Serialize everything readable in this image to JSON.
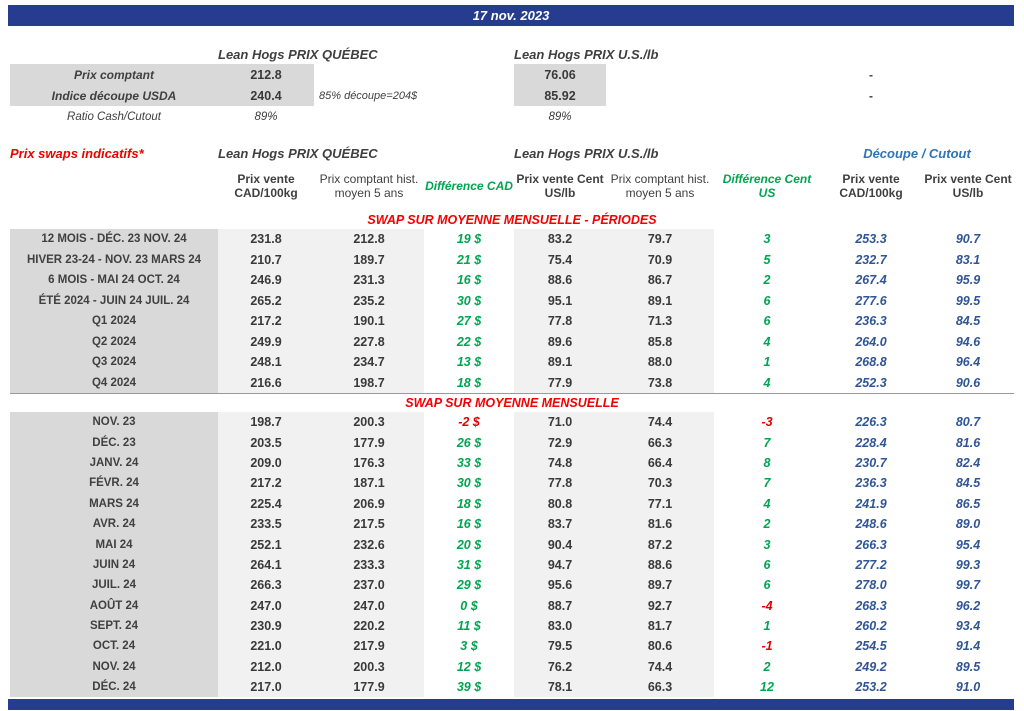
{
  "page": {
    "date": "17 nov. 2023"
  },
  "colors": {
    "navy": "#263D8F",
    "red": "#EE0000",
    "green": "#00A550",
    "blue_values": "#2F5597",
    "blue_header": "#2E75B6",
    "gray_label": "#D9D9D9",
    "gray_cell": "#F1F1F1"
  },
  "top_section": {
    "quebec_title": "Lean Hogs PRIX QUÉBEC",
    "us_title": "Lean Hogs PRIX U.S./lb",
    "rows": [
      {
        "label": "Prix comptant",
        "cad": "212.8",
        "note": "",
        "us": "76.06",
        "right": "-"
      },
      {
        "label": "Indice découpe USDA",
        "cad": "240.4",
        "note": "85% découpe=204$",
        "us": "85.92",
        "right": "-"
      },
      {
        "label": "Ratio Cash/Cutout",
        "cad": "89%",
        "note": "",
        "us": "89%",
        "right": ""
      }
    ]
  },
  "swaps": {
    "title": "Prix swaps indicatifs*",
    "group_quebec": "Lean Hogs PRIX QUÉBEC",
    "group_us": "Lean Hogs PRIX U.S./lb",
    "group_cutout": "Découpe / Cutout",
    "col_headers": [
      "Prix vente CAD/100kg",
      "Prix comptant hist. moyen 5 ans",
      "Différence CAD",
      "Prix vente Cent US/lb",
      "Prix comptant hist. moyen 5 ans",
      "Différence Cent US",
      "Prix vente CAD/100kg",
      "Prix vente Cent US/lb"
    ],
    "sections": [
      {
        "title": "SWAP SUR MOYENNE MENSUELLE - PÉRIODES",
        "rows": [
          {
            "label": "12 MOIS - DÉC. 23 NOV. 24",
            "cells": [
              "231.8",
              "212.8",
              "19 $",
              "83.2",
              "79.7",
              "3",
              "253.3",
              "90.7"
            ]
          },
          {
            "label": "HIVER 23-24 -  NOV. 23 MARS 24",
            "cells": [
              "210.7",
              "189.7",
              "21 $",
              "75.4",
              "70.9",
              "5",
              "232.7",
              "83.1"
            ]
          },
          {
            "label": "6 MOIS -  MAI 24 OCT. 24",
            "cells": [
              "246.9",
              "231.3",
              "16 $",
              "88.6",
              "86.7",
              "2",
              "267.4",
              "95.9"
            ]
          },
          {
            "label": "ÉTÉ 2024 - JUIN 24 JUIL. 24",
            "cells": [
              "265.2",
              "235.2",
              "30 $",
              "95.1",
              "89.1",
              "6",
              "277.6",
              "99.5"
            ]
          },
          {
            "label": "Q1 2024",
            "cells": [
              "217.2",
              "190.1",
              "27 $",
              "77.8",
              "71.3",
              "6",
              "236.3",
              "84.5"
            ]
          },
          {
            "label": "Q2 2024",
            "cells": [
              "249.9",
              "227.8",
              "22 $",
              "89.6",
              "85.8",
              "4",
              "264.0",
              "94.6"
            ]
          },
          {
            "label": "Q3 2024",
            "cells": [
              "248.1",
              "234.7",
              "13 $",
              "89.1",
              "88.0",
              "1",
              "268.8",
              "96.4"
            ]
          },
          {
            "label": "Q4 2024",
            "cells": [
              "216.6",
              "198.7",
              "18 $",
              "77.9",
              "73.8",
              "4",
              "252.3",
              "90.6"
            ]
          }
        ]
      },
      {
        "title": "SWAP SUR MOYENNE MENSUELLE",
        "rows": [
          {
            "label": "NOV. 23",
            "cells": [
              "198.7",
              "200.3",
              "-2 $",
              "71.0",
              "74.4",
              "-3",
              "226.3",
              "80.7"
            ]
          },
          {
            "label": "DÉC. 23",
            "cells": [
              "203.5",
              "177.9",
              "26 $",
              "72.9",
              "66.3",
              "7",
              "228.4",
              "81.6"
            ]
          },
          {
            "label": "JANV. 24",
            "cells": [
              "209.0",
              "176.3",
              "33 $",
              "74.8",
              "66.4",
              "8",
              "230.7",
              "82.4"
            ]
          },
          {
            "label": "FÉVR. 24",
            "cells": [
              "217.2",
              "187.1",
              "30 $",
              "77.8",
              "70.3",
              "7",
              "236.3",
              "84.5"
            ]
          },
          {
            "label": "MARS 24",
            "cells": [
              "225.4",
              "206.9",
              "18 $",
              "80.8",
              "77.1",
              "4",
              "241.9",
              "86.5"
            ]
          },
          {
            "label": "AVR. 24",
            "cells": [
              "233.5",
              "217.5",
              "16 $",
              "83.7",
              "81.6",
              "2",
              "248.6",
              "89.0"
            ]
          },
          {
            "label": "MAI 24",
            "cells": [
              "252.1",
              "232.6",
              "20 $",
              "90.4",
              "87.2",
              "3",
              "266.3",
              "95.4"
            ]
          },
          {
            "label": "JUIN 24",
            "cells": [
              "264.1",
              "233.3",
              "31 $",
              "94.7",
              "88.6",
              "6",
              "277.2",
              "99.3"
            ]
          },
          {
            "label": "JUIL. 24",
            "cells": [
              "266.3",
              "237.0",
              "29 $",
              "95.6",
              "89.7",
              "6",
              "278.0",
              "99.7"
            ]
          },
          {
            "label": "AOÛT 24",
            "cells": [
              "247.0",
              "247.0",
              "0 $",
              "88.7",
              "92.7",
              "-4",
              "268.3",
              "96.2"
            ]
          },
          {
            "label": "SEPT. 24",
            "cells": [
              "230.9",
              "220.2",
              "11 $",
              "83.0",
              "81.7",
              "1",
              "260.2",
              "93.4"
            ]
          },
          {
            "label": "OCT. 24",
            "cells": [
              "221.0",
              "217.9",
              "3 $",
              "79.5",
              "80.6",
              "-1",
              "254.5",
              "91.4"
            ]
          },
          {
            "label": "NOV. 24",
            "cells": [
              "212.0",
              "200.3",
              "12 $",
              "76.2",
              "74.4",
              "2",
              "249.2",
              "89.5"
            ]
          },
          {
            "label": "DÉC. 24",
            "cells": [
              "217.0",
              "177.9",
              "39 $",
              "78.1",
              "66.3",
              "12",
              "253.2",
              "91.0"
            ]
          }
        ]
      }
    ]
  }
}
